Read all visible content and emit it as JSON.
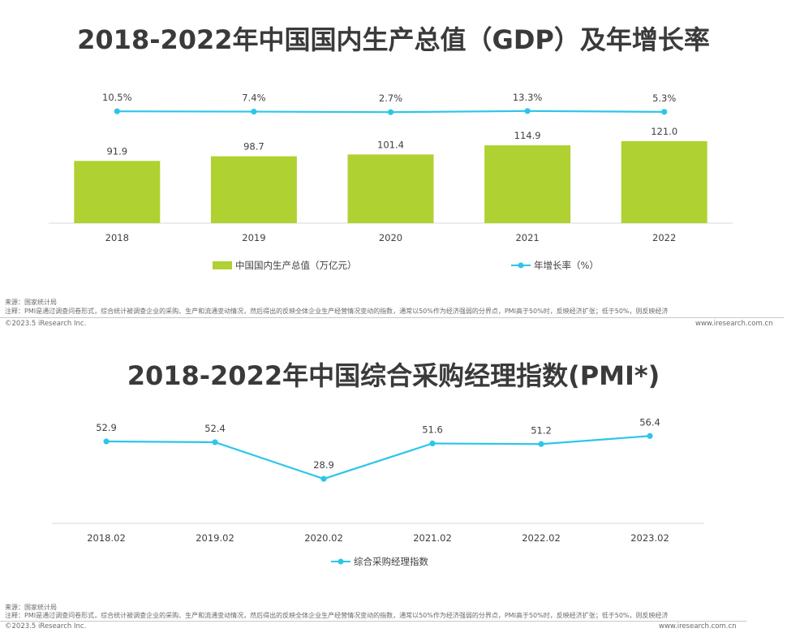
{
  "chart_data": [
    {
      "type": "bar+line",
      "title": "2018-2022年中国国内生产总值（GDP）及年增长率",
      "categories": [
        "2018",
        "2019",
        "2020",
        "2021",
        "2022"
      ],
      "series": [
        {
          "name": "中国国内生产总值（万亿元）",
          "kind": "bar",
          "values": [
            91.9,
            98.7,
            101.4,
            114.9,
            121.0
          ],
          "labels": [
            "91.9",
            "98.7",
            "101.4",
            "114.9",
            "121.0"
          ]
        },
        {
          "name": "年增长率（%）",
          "kind": "line",
          "values": [
            10.5,
            7.4,
            2.7,
            13.3,
            5.3
          ],
          "labels": [
            "10.5%",
            "7.4%",
            "2.7%",
            "13.3%",
            "5.3%"
          ]
        }
      ],
      "legend": "bottom",
      "colors": {
        "bar": "#b0d132",
        "line": "#2cc6ea"
      }
    },
    {
      "type": "line",
      "title": "2018-2022年中国综合采购经理指数(PMI*)",
      "categories": [
        "2018.02",
        "2019.02",
        "2020.02",
        "2021.02",
        "2022.02",
        "2023.02"
      ],
      "series": [
        {
          "name": "综合采购经理指数",
          "values": [
            52.9,
            52.4,
            28.9,
            51.6,
            51.2,
            56.4
          ],
          "labels": [
            "52.9",
            "52.4",
            "28.9",
            "51.6",
            "51.2",
            "56.4"
          ]
        }
      ],
      "legend": "bottom",
      "colors": {
        "line": "#2cc6ea"
      }
    }
  ],
  "footer": {
    "source": "来源：国家统计局",
    "note": "注释：PMI是通过调查问卷形式，综合统计被调查企业的采购、生产和流通变动情况，然后得出的反映全体企业生产经营情况变动的指数，通常以50%作为经济强弱的分界点，PMI高于50%时，反映经济扩张；低于50%，则反映经济",
    "copyright": "©2023.5 iResearch Inc.",
    "site": "www.iresearch.com.cn"
  }
}
